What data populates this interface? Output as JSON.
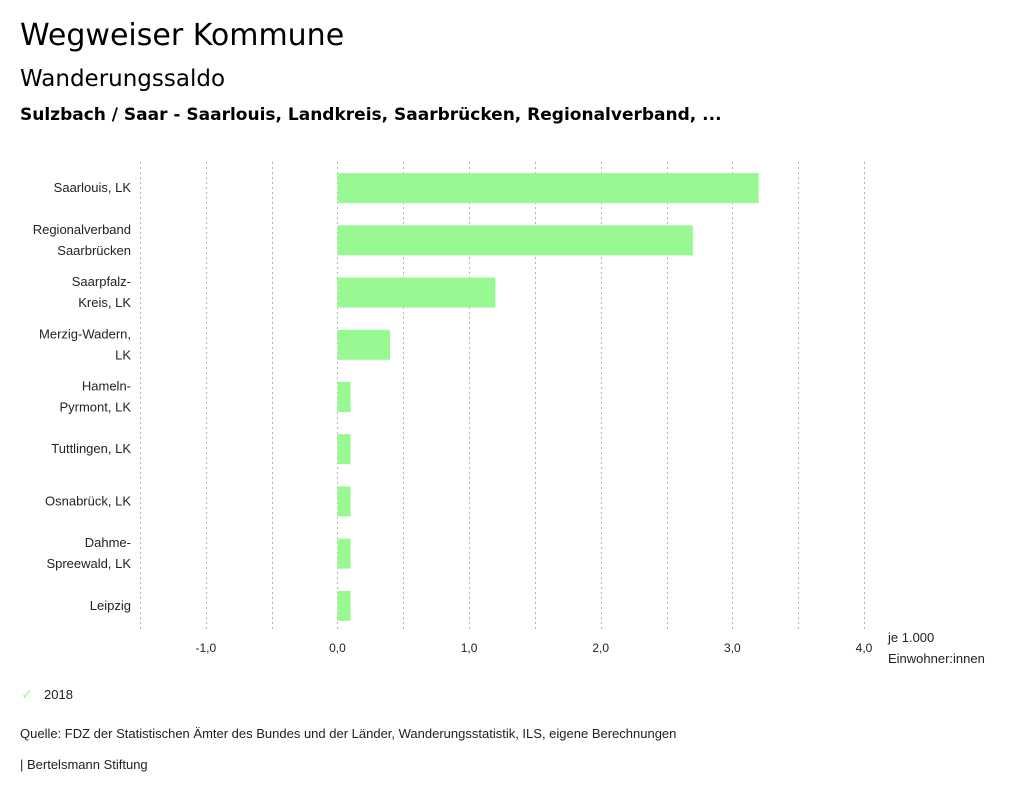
{
  "header": {
    "title": "Wegweiser Kommune",
    "subtitle": "Wanderungssaldo",
    "region": "Sulzbach / Saar - Saarlouis, Landkreis, Saarbrücken, Regionalverband, ..."
  },
  "chart_data": {
    "type": "bar",
    "orientation": "horizontal",
    "title": "Wanderungssaldo",
    "categories": [
      [
        "Saarlouis, LK"
      ],
      [
        "Regionalverband",
        "Saarbrücken"
      ],
      [
        "Saarpfalz-",
        "Kreis, LK"
      ],
      [
        "Merzig-Wadern,",
        "LK"
      ],
      [
        "Hameln-",
        "Pyrmont, LK"
      ],
      [
        "Tuttlingen, LK"
      ],
      [
        "Osnabrück, LK"
      ],
      [
        "Dahme-",
        "Spreewald, LK"
      ],
      [
        "Leipzig"
      ]
    ],
    "series": [
      {
        "name": "2018",
        "color": "#98f993",
        "values": [
          3.2,
          2.7,
          1.2,
          0.4,
          0.1,
          0.1,
          0.1,
          0.1,
          0.1
        ]
      }
    ],
    "xlim": [
      -1.5,
      4.0
    ],
    "xticks": [
      -1.0,
      0.0,
      1.0,
      2.0,
      3.0,
      4.0
    ],
    "xtick_labels": [
      "-1,0",
      "0,0",
      "1,0",
      "2,0",
      "3,0",
      "4,0"
    ],
    "gridline_step": 0.5,
    "grid": true,
    "xlabel": "je 1.000 Einwohner:innen",
    "xlabel_lines": [
      "je 1.000",
      "Einwohner:innen"
    ],
    "legend_position": "bottom-left"
  },
  "legend": {
    "items": [
      {
        "label": "2018",
        "icon": "check-icon",
        "color": "#98f993"
      }
    ]
  },
  "footer": {
    "source": "Quelle: FDZ der Statistischen Ämter des Bundes und der Länder, Wanderungsstatistik, ILS, eigene Berechnungen",
    "publisher": "| Bertelsmann Stiftung"
  }
}
